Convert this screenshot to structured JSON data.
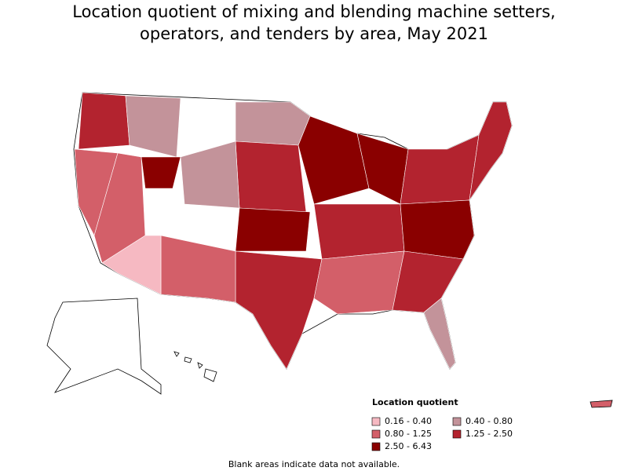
{
  "title": [
    "Location quotient of mixing and blending machine setters,",
    "operators, and tenders by area, May 2021"
  ],
  "legend": {
    "title": "Location quotient",
    "items": [
      {
        "label": "0.16 - 0.40",
        "color": "#f6b9c2"
      },
      {
        "label": "0.40 - 0.80",
        "color": "#c3939a"
      },
      {
        "label": "0.80 - 1.25",
        "color": "#d35f69"
      },
      {
        "label": "1.25 - 2.50",
        "color": "#b3232f"
      },
      {
        "label": "2.50 - 6.43",
        "color": "#8a0000"
      }
    ]
  },
  "footnote": "Blank areas indicate data not available."
}
